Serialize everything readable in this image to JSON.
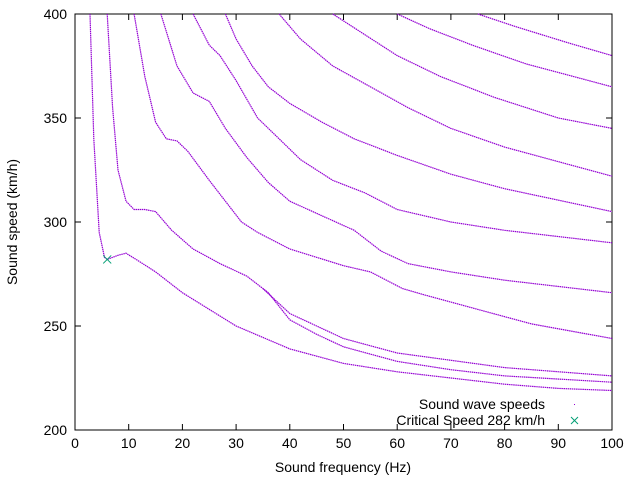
{
  "chart_data": {
    "type": "scatter",
    "title": "",
    "xlabel": "Sound frequency (Hz)",
    "ylabel": "Sound speed (km/h)",
    "xlim": [
      0,
      100
    ],
    "ylim": [
      200,
      400
    ],
    "xticks": [
      "0",
      "10",
      "20",
      "30",
      "40",
      "50",
      "60",
      "70",
      "80",
      "90",
      "100"
    ],
    "yticks": [
      "200",
      "250",
      "300",
      "350",
      "400"
    ],
    "grid": false,
    "legend_position": "bottom-right",
    "legend": [
      "Sound wave speeds",
      "Critical Speed 282 km/h"
    ],
    "colors": {
      "waves": "#9400d3",
      "critical": "#009e73"
    },
    "series": [
      {
        "name": "Sound wave speeds",
        "points": [
          [
            2.8,
            400
          ],
          [
            3.5,
            340
          ],
          [
            4.5,
            295
          ],
          [
            5.5,
            283
          ],
          [
            6,
            282
          ],
          [
            8,
            284
          ],
          [
            9.5,
            285
          ],
          [
            12,
            281
          ],
          [
            15,
            276
          ],
          [
            20,
            266
          ],
          [
            25,
            258
          ],
          [
            30,
            250
          ],
          [
            40,
            239
          ],
          [
            50,
            232
          ],
          [
            60,
            228
          ],
          [
            70,
            225
          ],
          [
            80,
            222
          ],
          [
            90,
            220
          ],
          [
            100,
            219
          ]
        ]
      },
      {
        "name": "Sound wave speeds",
        "points": [
          [
            6,
            400
          ],
          [
            7,
            355
          ],
          [
            8,
            325
          ],
          [
            9.5,
            310
          ],
          [
            11,
            306
          ],
          [
            13,
            306
          ],
          [
            15,
            305
          ],
          [
            18,
            296
          ],
          [
            22,
            287
          ],
          [
            27,
            280
          ],
          [
            32,
            274
          ],
          [
            36,
            266
          ],
          [
            40,
            253
          ],
          [
            45,
            246
          ],
          [
            50,
            240
          ],
          [
            60,
            233
          ],
          [
            70,
            229
          ],
          [
            80,
            226
          ],
          [
            100,
            223
          ]
        ]
      },
      {
        "name": "Sound wave speeds",
        "points": [
          [
            35,
            268
          ],
          [
            40,
            256
          ],
          [
            50,
            244
          ],
          [
            60,
            237
          ],
          [
            80,
            230
          ],
          [
            100,
            226
          ]
        ]
      },
      {
        "name": "Sound wave speeds",
        "points": [
          [
            11,
            400
          ],
          [
            13,
            370
          ],
          [
            15,
            348
          ],
          [
            17,
            340
          ],
          [
            19,
            339
          ],
          [
            21,
            334
          ],
          [
            25,
            320
          ],
          [
            28,
            310
          ],
          [
            31,
            300
          ],
          [
            34,
            295
          ],
          [
            40,
            287
          ],
          [
            50,
            279
          ],
          [
            55,
            276
          ],
          [
            61,
            268
          ],
          [
            65,
            265
          ],
          [
            75,
            258
          ],
          [
            85,
            251
          ],
          [
            100,
            244
          ]
        ]
      },
      {
        "name": "Sound wave speeds",
        "points": [
          [
            16,
            400
          ],
          [
            19,
            375
          ],
          [
            22,
            362
          ],
          [
            25,
            358
          ],
          [
            28,
            345
          ],
          [
            32,
            331
          ],
          [
            36,
            319
          ],
          [
            40,
            310
          ],
          [
            46,
            303
          ],
          [
            52,
            296
          ],
          [
            57,
            286
          ],
          [
            62,
            280
          ],
          [
            70,
            276
          ],
          [
            80,
            272
          ],
          [
            100,
            266
          ]
        ]
      },
      {
        "name": "Sound wave speeds",
        "points": [
          [
            22,
            400
          ],
          [
            25,
            385
          ],
          [
            27,
            380
          ],
          [
            30,
            368
          ],
          [
            34,
            350
          ],
          [
            38,
            340
          ],
          [
            42,
            330
          ],
          [
            48,
            320
          ],
          [
            54,
            314
          ],
          [
            60,
            306
          ],
          [
            70,
            300
          ],
          [
            80,
            296
          ],
          [
            100,
            290
          ]
        ]
      },
      {
        "name": "Sound wave speeds",
        "points": [
          [
            28,
            400
          ],
          [
            30,
            388
          ],
          [
            33,
            375
          ],
          [
            36,
            365
          ],
          [
            40,
            357
          ],
          [
            46,
            348
          ],
          [
            52,
            340
          ],
          [
            60,
            332
          ],
          [
            70,
            323
          ],
          [
            80,
            316
          ],
          [
            100,
            305
          ]
        ]
      },
      {
        "name": "Sound wave speeds",
        "points": [
          [
            38,
            400
          ],
          [
            42,
            388
          ],
          [
            48,
            375
          ],
          [
            55,
            365
          ],
          [
            62,
            355
          ],
          [
            70,
            345
          ],
          [
            80,
            336
          ],
          [
            100,
            322
          ]
        ]
      },
      {
        "name": "Sound wave speeds",
        "points": [
          [
            48,
            400
          ],
          [
            54,
            390
          ],
          [
            60,
            380
          ],
          [
            68,
            370
          ],
          [
            78,
            360
          ],
          [
            90,
            350
          ],
          [
            100,
            345
          ]
        ]
      },
      {
        "name": "Sound wave speeds",
        "points": [
          [
            60,
            400
          ],
          [
            66,
            393
          ],
          [
            74,
            385
          ],
          [
            84,
            376
          ],
          [
            100,
            365
          ]
        ]
      },
      {
        "name": "Sound wave speeds",
        "points": [
          [
            75,
            400
          ],
          [
            82,
            394
          ],
          [
            92,
            386
          ],
          [
            100,
            380
          ]
        ]
      }
    ],
    "critical_point": {
      "label": "Critical Speed 282 km/h",
      "x": 6,
      "y": 282
    }
  }
}
